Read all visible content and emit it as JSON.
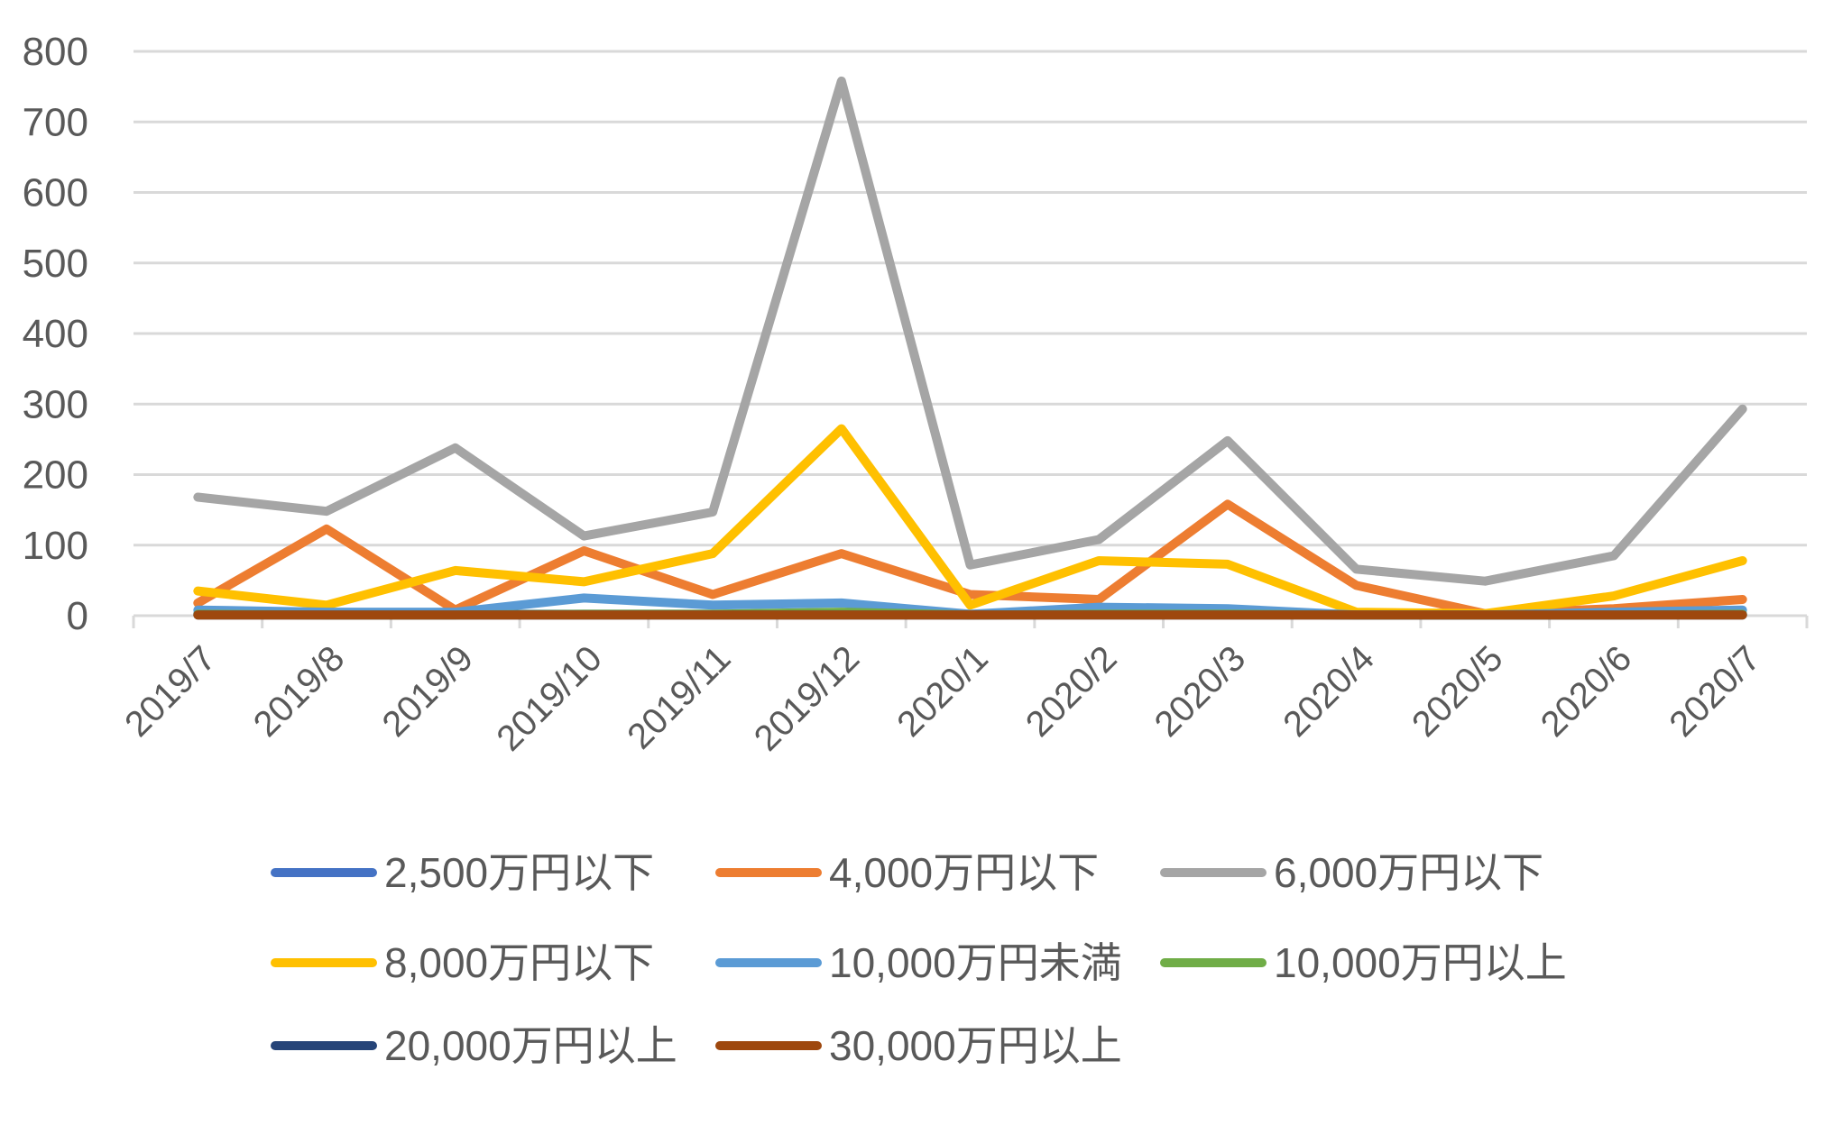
{
  "chart_data": {
    "type": "line",
    "categories": [
      "2019/7",
      "2019/8",
      "2019/9",
      "2019/10",
      "2019/11",
      "2019/12",
      "2020/1",
      "2020/2",
      "2020/3",
      "2020/4",
      "2020/5",
      "2020/6",
      "2020/7"
    ],
    "ylim": [
      0,
      800
    ],
    "yticks": [
      0,
      100,
      200,
      300,
      400,
      500,
      600,
      700,
      800
    ],
    "grid": true,
    "legend_position": "bottom",
    "series": [
      {
        "name": "2,500万円以下",
        "color": "#4472C4",
        "values": [
          3,
          2,
          2,
          2,
          2,
          2,
          1,
          2,
          2,
          1,
          1,
          1,
          2
        ]
      },
      {
        "name": "4,000万円以下",
        "color": "#ED7D31",
        "values": [
          18,
          123,
          8,
          92,
          30,
          88,
          30,
          23,
          158,
          43,
          3,
          10,
          23
        ]
      },
      {
        "name": "6,000万円以下",
        "color": "#A5A5A5",
        "values": [
          168,
          148,
          238,
          113,
          147,
          758,
          72,
          108,
          248,
          66,
          49,
          85,
          293
        ]
      },
      {
        "name": "8,000万円以下",
        "color": "#FFC000",
        "values": [
          35,
          15,
          64,
          48,
          88,
          265,
          15,
          78,
          73,
          5,
          3,
          28,
          78
        ]
      },
      {
        "name": "10,000万円未満",
        "color": "#5B9BD5",
        "values": [
          8,
          5,
          5,
          25,
          15,
          18,
          2,
          12,
          10,
          1,
          1,
          5,
          8
        ]
      },
      {
        "name": "10,000万円以上",
        "color": "#70AD47",
        "values": [
          2,
          1,
          1,
          2,
          2,
          5,
          1,
          2,
          2,
          1,
          1,
          1,
          2
        ]
      },
      {
        "name": "20,000万円以上",
        "color": "#264478",
        "values": [
          1,
          1,
          1,
          1,
          1,
          1,
          1,
          1,
          1,
          1,
          1,
          1,
          1
        ]
      },
      {
        "name": "30,000万円以上",
        "color": "#9E480E",
        "values": [
          1,
          1,
          1,
          1,
          1,
          1,
          1,
          1,
          1,
          1,
          1,
          1,
          1
        ]
      }
    ]
  }
}
